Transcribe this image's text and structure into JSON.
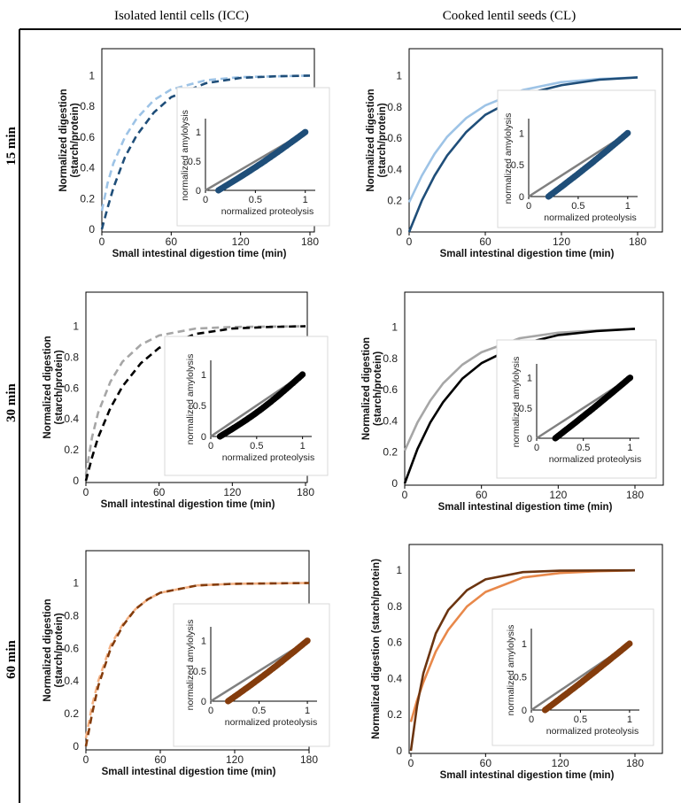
{
  "columns": [
    "Isolated lentil cells (ICC)",
    "Cooked lentil seeds (CL)"
  ],
  "rows": [
    "15 min",
    "30 min",
    "60 min"
  ],
  "chart_data": [
    {
      "type": "line",
      "panel": "ICC-15",
      "row": 0,
      "col": 0,
      "xlabel": "Small intestinal digestion time (min)",
      "ylabel": [
        "Normalized digestion",
        "(starch/protein)"
      ],
      "xlim": [
        0,
        180
      ],
      "ylim": [
        0,
        1.1
      ],
      "xticks": [
        0,
        60,
        120,
        180
      ],
      "yticks": [
        0,
        0.2,
        0.4,
        0.6,
        0.8,
        1
      ],
      "series": [
        {
          "color": "#9dc3e6",
          "dashed": true,
          "values": [
            [
              0,
              0.12
            ],
            [
              5,
              0.3
            ],
            [
              10,
              0.43
            ],
            [
              20,
              0.6
            ],
            [
              30,
              0.72
            ],
            [
              45,
              0.84
            ],
            [
              60,
              0.91
            ],
            [
              90,
              0.97
            ],
            [
              120,
              0.99
            ],
            [
              150,
              0.995
            ],
            [
              180,
              1
            ]
          ]
        },
        {
          "color": "#1f4e79",
          "dashed": true,
          "values": [
            [
              0,
              0
            ],
            [
              5,
              0.14
            ],
            [
              10,
              0.27
            ],
            [
              20,
              0.47
            ],
            [
              30,
              0.61
            ],
            [
              45,
              0.76
            ],
            [
              60,
              0.86
            ],
            [
              90,
              0.95
            ],
            [
              120,
              0.985
            ],
            [
              150,
              0.995
            ],
            [
              180,
              1
            ]
          ]
        }
      ],
      "inset": {
        "xlabel": "normalized proteolysis",
        "ylabel": "normalized amylolysis",
        "color": "#1f4e79",
        "start": [
          0.13,
          0
        ],
        "bow": 0.05
      }
    },
    {
      "type": "line",
      "panel": "CL-15",
      "row": 0,
      "col": 1,
      "xlabel": "Small intestinal digestion time (min)",
      "ylabel": [
        "Normalized digestion",
        "(starch/protein)"
      ],
      "xlim": [
        0,
        180
      ],
      "ylim": [
        0,
        1.1
      ],
      "xticks": [
        0,
        60,
        120,
        180
      ],
      "yticks": [
        0,
        0.2,
        0.4,
        0.6,
        0.8,
        1
      ],
      "series": [
        {
          "color": "#9dc3e6",
          "dashed": false,
          "values": [
            [
              0,
              0.19
            ],
            [
              10,
              0.36
            ],
            [
              20,
              0.5
            ],
            [
              30,
              0.61
            ],
            [
              45,
              0.73
            ],
            [
              60,
              0.81
            ],
            [
              90,
              0.91
            ],
            [
              120,
              0.96
            ],
            [
              150,
              0.98
            ],
            [
              180,
              0.99
            ]
          ]
        },
        {
          "color": "#1f4e79",
          "dashed": false,
          "values": [
            [
              0,
              0
            ],
            [
              10,
              0.2
            ],
            [
              20,
              0.36
            ],
            [
              30,
              0.49
            ],
            [
              45,
              0.64
            ],
            [
              60,
              0.75
            ],
            [
              90,
              0.88
            ],
            [
              120,
              0.94
            ],
            [
              150,
              0.975
            ],
            [
              180,
              0.99
            ]
          ]
        }
      ],
      "inset": {
        "xlabel": "normalized proteolysis",
        "ylabel": "normalized amylolysis",
        "color": "#1f4e79",
        "start": [
          0.2,
          0
        ],
        "bow": 0.03
      }
    },
    {
      "type": "line",
      "panel": "ICC-30",
      "row": 1,
      "col": 0,
      "xlabel": "Small intestinal digestion time (min)",
      "ylabel": [
        "Normalized digestion",
        "(starch/protein)"
      ],
      "xlim": [
        0,
        180
      ],
      "ylim": [
        0,
        1.1
      ],
      "xticks": [
        0,
        60,
        120,
        180
      ],
      "yticks": [
        0,
        0.2,
        0.4,
        0.6,
        0.8,
        1
      ],
      "series": [
        {
          "color": "#a6a6a6",
          "dashed": true,
          "values": [
            [
              0,
              0.04
            ],
            [
              5,
              0.28
            ],
            [
              10,
              0.44
            ],
            [
              20,
              0.64
            ],
            [
              30,
              0.77
            ],
            [
              45,
              0.88
            ],
            [
              60,
              0.94
            ],
            [
              90,
              0.985
            ],
            [
              120,
              0.995
            ],
            [
              180,
              1
            ]
          ]
        },
        {
          "color": "#000000",
          "dashed": true,
          "values": [
            [
              0,
              0
            ],
            [
              5,
              0.15
            ],
            [
              10,
              0.28
            ],
            [
              20,
              0.47
            ],
            [
              30,
              0.61
            ],
            [
              45,
              0.76
            ],
            [
              60,
              0.86
            ],
            [
              90,
              0.95
            ],
            [
              120,
              0.985
            ],
            [
              150,
              0.995
            ],
            [
              180,
              1
            ]
          ]
        }
      ],
      "inset": {
        "xlabel": "normalized proteolysis",
        "ylabel": "normalized amylolysis",
        "color": "#000000",
        "start": [
          0.1,
          0
        ],
        "bow": 0.1
      }
    },
    {
      "type": "line",
      "panel": "CL-30",
      "row": 1,
      "col": 1,
      "xlabel": "Small intestinal digestion time (min)",
      "ylabel": [
        "Normalized digestion",
        "(starch/protein)"
      ],
      "xlim": [
        0,
        180
      ],
      "ylim": [
        0,
        1.1
      ],
      "xticks": [
        0,
        60,
        120,
        180
      ],
      "yticks": [
        0,
        0.2,
        0.4,
        0.6,
        0.8,
        1
      ],
      "series": [
        {
          "color": "#a6a6a6",
          "dashed": false,
          "values": [
            [
              0,
              0.21
            ],
            [
              10,
              0.39
            ],
            [
              20,
              0.53
            ],
            [
              30,
              0.64
            ],
            [
              45,
              0.76
            ],
            [
              60,
              0.84
            ],
            [
              90,
              0.93
            ],
            [
              120,
              0.965
            ],
            [
              150,
              0.98
            ],
            [
              180,
              0.99
            ]
          ]
        },
        {
          "color": "#000000",
          "dashed": false,
          "values": [
            [
              0,
              0
            ],
            [
              10,
              0.22
            ],
            [
              20,
              0.39
            ],
            [
              30,
              0.52
            ],
            [
              45,
              0.67
            ],
            [
              60,
              0.77
            ],
            [
              90,
              0.89
            ],
            [
              120,
              0.95
            ],
            [
              150,
              0.975
            ],
            [
              180,
              0.99
            ]
          ]
        }
      ],
      "inset": {
        "xlabel": "normalized proteolysis",
        "ylabel": "normalized amylolysis",
        "color": "#000000",
        "start": [
          0.2,
          0
        ],
        "bow": 0.02
      }
    },
    {
      "type": "line",
      "panel": "ICC-60",
      "row": 2,
      "col": 0,
      "xlabel": "Small intestinal digestion time (min)",
      "ylabel": [
        "Normalized digestion",
        "(starch/protein)"
      ],
      "xlim": [
        0,
        180
      ],
      "ylim": [
        0,
        1.1
      ],
      "xticks": [
        0,
        60,
        120,
        180
      ],
      "yticks": [
        0,
        0.2,
        0.4,
        0.6,
        0.8,
        1
      ],
      "series": [
        {
          "color": "#f4b183",
          "dashed": true,
          "values": [
            [
              0,
              0.05
            ],
            [
              5,
              0.25
            ],
            [
              10,
              0.4
            ],
            [
              20,
              0.62
            ],
            [
              30,
              0.75
            ],
            [
              40,
              0.84
            ],
            [
              50,
              0.9
            ],
            [
              60,
              0.94
            ],
            [
              90,
              0.985
            ],
            [
              120,
              0.995
            ],
            [
              180,
              1
            ]
          ]
        },
        {
          "color": "#843c0c",
          "dashed": true,
          "values": [
            [
              0,
              0
            ],
            [
              5,
              0.2
            ],
            [
              10,
              0.37
            ],
            [
              20,
              0.6
            ],
            [
              30,
              0.74
            ],
            [
              40,
              0.84
            ],
            [
              50,
              0.9
            ],
            [
              60,
              0.94
            ],
            [
              90,
              0.985
            ],
            [
              120,
              0.995
            ],
            [
              180,
              1
            ]
          ]
        }
      ],
      "inset": {
        "xlabel": "normalized proteolysis",
        "ylabel": "normalized amylolysis",
        "color": "#843c0c",
        "start": [
          0.18,
          0
        ],
        "bow": 0.04
      }
    },
    {
      "type": "line",
      "panel": "CL-60",
      "row": 2,
      "col": 1,
      "xlabel": "Small intestinal digestion time (min)",
      "ylabel": [
        "Normalized digestion (starch/protein)"
      ],
      "xlim": [
        0,
        180
      ],
      "ylim": [
        0,
        1.05
      ],
      "xticks": [
        0,
        60,
        120,
        180
      ],
      "yticks": [
        0,
        0.2,
        0.4,
        0.6,
        0.8,
        1
      ],
      "series": [
        {
          "color": "#e8884a",
          "dashed": false,
          "values": [
            [
              0,
              0.16
            ],
            [
              5,
              0.28
            ],
            [
              10,
              0.38
            ],
            [
              20,
              0.55
            ],
            [
              30,
              0.67
            ],
            [
              45,
              0.8
            ],
            [
              60,
              0.88
            ],
            [
              90,
              0.96
            ],
            [
              120,
              0.985
            ],
            [
              150,
              0.995
            ],
            [
              180,
              1
            ]
          ]
        },
        {
          "color": "#6b3410",
          "dashed": false,
          "values": [
            [
              0,
              0
            ],
            [
              5,
              0.25
            ],
            [
              10,
              0.43
            ],
            [
              20,
              0.65
            ],
            [
              30,
              0.78
            ],
            [
              45,
              0.89
            ],
            [
              60,
              0.95
            ],
            [
              90,
              0.99
            ],
            [
              120,
              0.998
            ],
            [
              180,
              1
            ]
          ]
        }
      ],
      "inset": {
        "xlabel": "normalized proteolysis",
        "ylabel": "normalized amylolysis",
        "color": "#843c0c",
        "start": [
          0.14,
          0
        ],
        "bow": 0.02
      }
    }
  ]
}
